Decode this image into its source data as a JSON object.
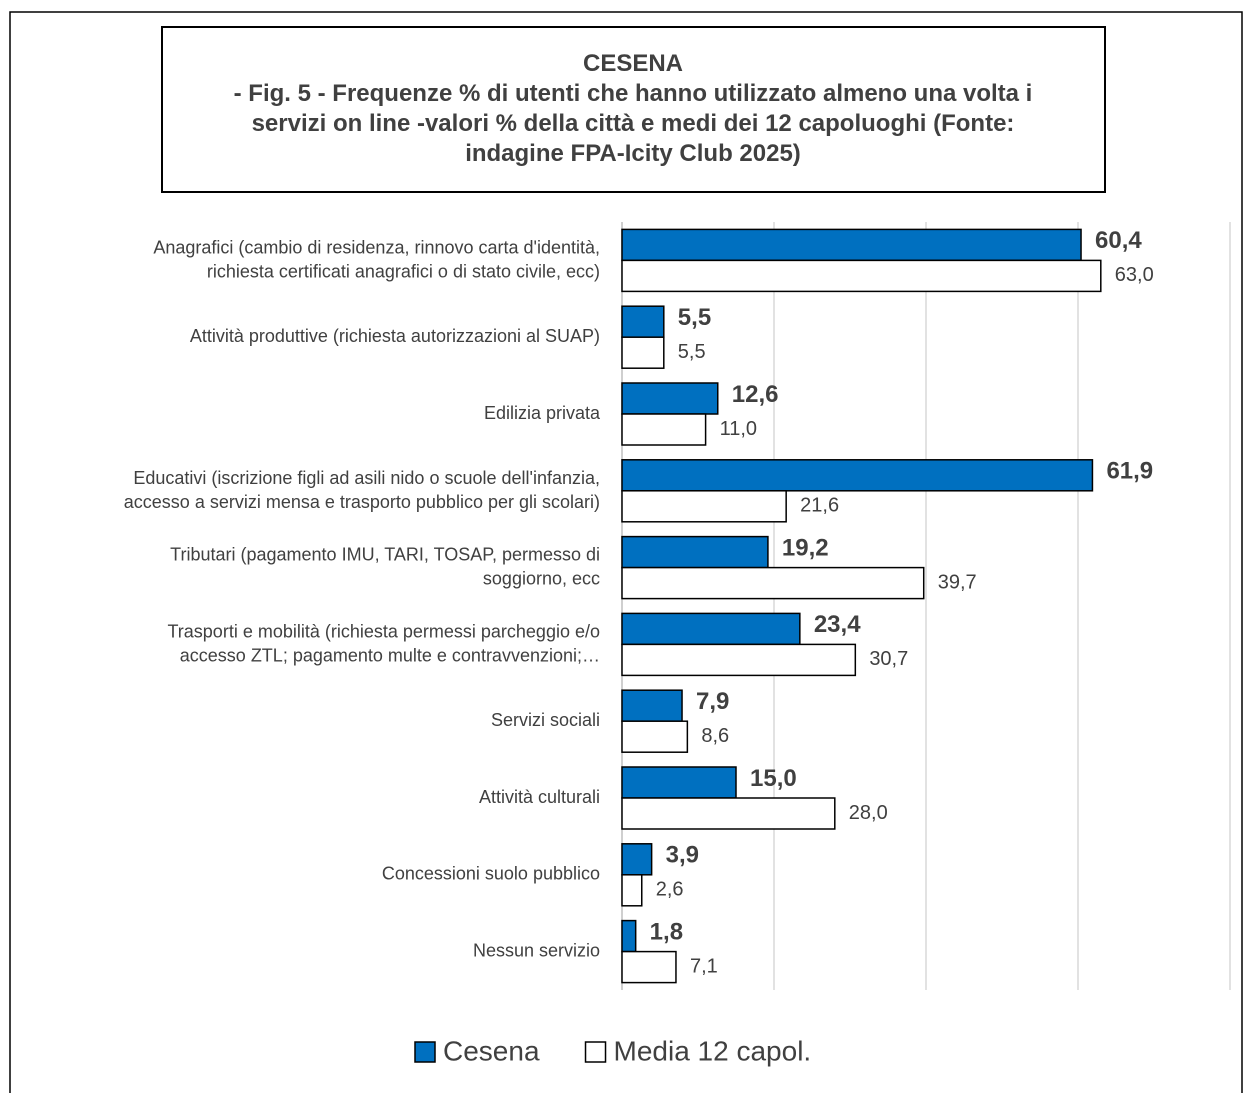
{
  "chart_data": {
    "type": "hbar",
    "title": "CESENA\n- Fig. 5 - Frequenze % di utenti che hanno utilizzato almeno una volta i\nservizi on line  -valori % della città e medi dei 12 capoluoghi (Fonte:\nindagine FPA-Icity Club 2025)",
    "categories": [
      "Anagrafici (cambio di residenza, rinnovo carta d'identità,\nrichiesta certificati anagrafici o di stato civile, ecc)",
      "Attività produttive (richiesta autorizzazioni al SUAP)",
      "Edilizia privata",
      "Educativi (iscrizione figli ad asili nido o scuole dell'infanzia,\naccesso a servizi mensa e trasporto pubblico per gli scolari)",
      "Tributari (pagamento IMU, TARI, TOSAP, permesso di\nsoggiorno, ecc",
      "Trasporti e mobilità (richiesta permessi parcheggio e/o\naccesso ZTL; pagamento multe e contravvenzioni;…",
      "Servizi sociali",
      "Attività culturali",
      "Concessioni suolo pubblico",
      "Nessun servizio"
    ],
    "series": [
      {
        "name": "Cesena",
        "color": "#0070c0",
        "values": [
          60.4,
          5.5,
          12.6,
          61.9,
          19.2,
          23.4,
          7.9,
          15.0,
          3.9,
          1.8
        ],
        "value_labels": [
          "60,4",
          "5,5",
          "12,6",
          "61,9",
          "19,2",
          "23,4",
          "7,9",
          "15,0",
          "3,9",
          "1,8"
        ]
      },
      {
        "name": "Media 12 capol.",
        "color": "#ffffff",
        "values": [
          63.0,
          5.5,
          11.0,
          21.6,
          39.7,
          30.7,
          8.6,
          28.0,
          2.6,
          7.1
        ],
        "value_labels": [
          "63,0",
          "5,5",
          "11,0",
          "21,6",
          "39,7",
          "30,7",
          "8,6",
          "28,0",
          "2,6",
          "7,1"
        ]
      }
    ],
    "xlim": [
      0,
      80
    ],
    "xticks": [
      0,
      20,
      40,
      60,
      80
    ],
    "grid": true,
    "legend": "bottom"
  }
}
